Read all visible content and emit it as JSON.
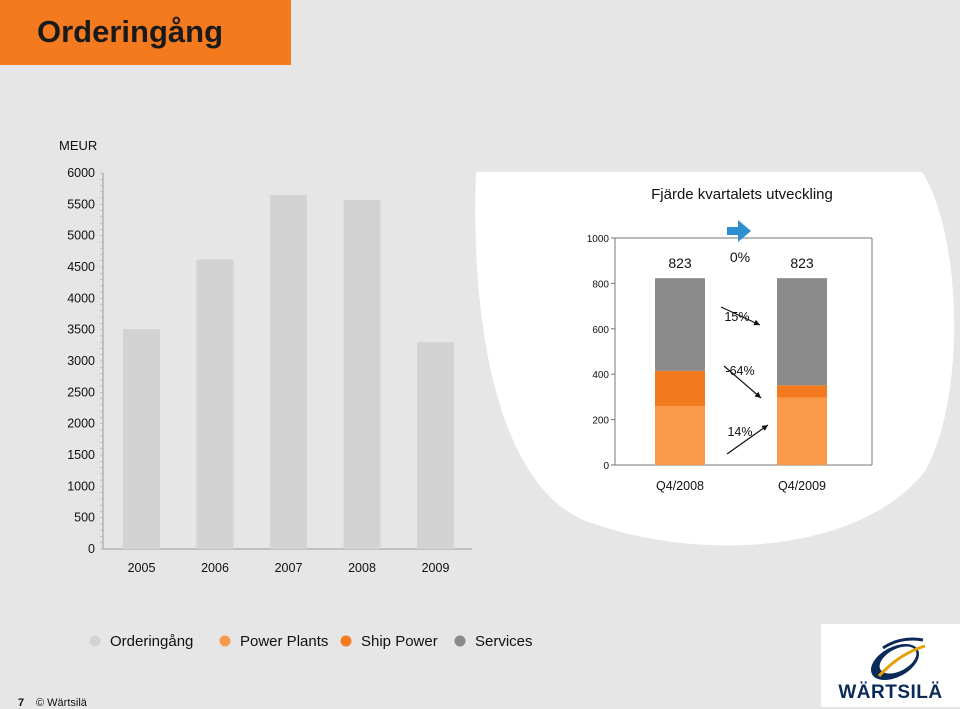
{
  "header": {
    "title": "Orderingång"
  },
  "footer": {
    "page_number": "7",
    "copyright": "© Wärtsilä"
  },
  "logo": {
    "text": "WÄRTSILÄ"
  },
  "colors": {
    "background": "#e6e6e6",
    "title_bar": "#f47a20",
    "orderingang": "#d3d3d3",
    "power_plants": "#f99a4a",
    "ship_power": "#f47a20",
    "services": "#8a8a8a"
  },
  "legend": {
    "items": [
      {
        "label": "Orderingång",
        "color": "#d3d3d3"
      },
      {
        "label": "Power Plants",
        "color": "#f99a4a"
      },
      {
        "label": "Ship Power",
        "color": "#f47a20"
      },
      {
        "label": "Services",
        "color": "#8a8a8a"
      }
    ]
  },
  "chart_data": [
    {
      "type": "bar",
      "title": "",
      "ylabel": "MEUR",
      "xlabel": "",
      "categories": [
        "2005",
        "2006",
        "2007",
        "2008",
        "2009"
      ],
      "series": [
        {
          "name": "Orderingång",
          "values": [
            3510,
            4620,
            5650,
            5570,
            3300
          ]
        }
      ],
      "ylim": [
        0,
        6000
      ],
      "yticks": [
        0,
        500,
        1000,
        1500,
        2000,
        2500,
        3000,
        3500,
        4000,
        4500,
        5000,
        5500,
        6000
      ],
      "grid": false
    },
    {
      "type": "bar",
      "stacked": true,
      "title": "Fjärde kvartalets utveckling",
      "categories": [
        "Q4/2008",
        "Q4/2009"
      ],
      "series": [
        {
          "name": "Power Plants",
          "values": [
            260,
            296
          ]
        },
        {
          "name": "Ship Power",
          "values": [
            155,
            55
          ]
        },
        {
          "name": "Services",
          "values": [
            408,
            472
          ]
        }
      ],
      "totals": [
        "823",
        "823"
      ],
      "changes": [
        {
          "label": "0%",
          "series": "Total"
        },
        {
          "label": "15%",
          "series": "Services"
        },
        {
          "label": "-64%",
          "series": "Ship Power"
        },
        {
          "label": "14%",
          "series": "Power Plants"
        }
      ],
      "ylim": [
        0,
        1000
      ],
      "yticks": [
        0,
        200,
        400,
        600,
        800,
        1000
      ],
      "grid": false
    }
  ]
}
